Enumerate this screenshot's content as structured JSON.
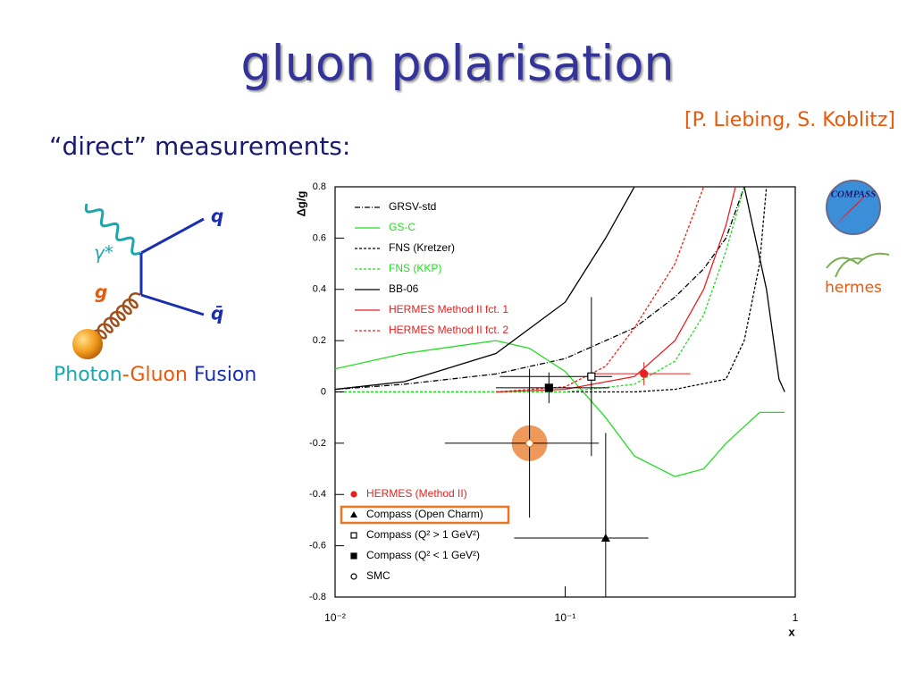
{
  "slide": {
    "title": "gluon polarisation",
    "citation": "[P. Liebing, S. Koblitz]",
    "subtitle": "“direct” measurements:",
    "diagram": {
      "photon": "γ*",
      "gluon": "g",
      "quark": "q",
      "antiquark": "q̄",
      "caption": [
        "Photon",
        "-Gluon",
        " Fusion"
      ]
    },
    "logos": [
      "COMPASS",
      "hermes"
    ]
  },
  "chart_data": {
    "type": "line",
    "xlabel": "x",
    "ylabel": "Δg/g",
    "xscale": "log",
    "xlim": [
      0.01,
      1
    ],
    "ylim": [
      -0.8,
      0.8
    ],
    "xticks": [
      {
        "value": 0.01,
        "label": "10⁻²"
      },
      {
        "value": 0.1,
        "label": "10⁻¹"
      },
      1
    ],
    "yticks": [
      -0.8,
      -0.6,
      -0.4,
      -0.2,
      0,
      0.2,
      0.4,
      0.6,
      0.8
    ],
    "curves": [
      {
        "name": "GRSV-std",
        "color": "#000000",
        "dash": "6 2 1 2",
        "x": [
          0.01,
          0.02,
          0.05,
          0.1,
          0.2,
          0.3,
          0.4,
          0.5,
          0.6
        ],
        "values": [
          0.01,
          0.03,
          0.07,
          0.13,
          0.25,
          0.37,
          0.48,
          0.6,
          0.8
        ]
      },
      {
        "name": "GS-C",
        "color": "#22dd22",
        "dash": "",
        "x": [
          0.01,
          0.02,
          0.05,
          0.07,
          0.1,
          0.15,
          0.2,
          0.3,
          0.4,
          0.5,
          0.7,
          0.9
        ],
        "values": [
          0.09,
          0.15,
          0.2,
          0.17,
          0.08,
          -0.1,
          -0.25,
          -0.33,
          -0.3,
          -0.2,
          -0.08,
          -0.08
        ]
      },
      {
        "name": "FNS (Kretzer)",
        "color": "#000000",
        "dash": "3 2",
        "x": [
          0.01,
          0.1,
          0.2,
          0.3,
          0.5,
          0.6,
          0.7,
          0.75
        ],
        "values": [
          0,
          0,
          0,
          0.01,
          0.05,
          0.2,
          0.5,
          0.8
        ]
      },
      {
        "name": "FNS (KKP)",
        "color": "#22dd22",
        "dash": "3 2",
        "x": [
          0.01,
          0.1,
          0.2,
          0.3,
          0.4,
          0.5,
          0.6
        ],
        "values": [
          0,
          0,
          0.03,
          0.12,
          0.3,
          0.55,
          0.8
        ]
      },
      {
        "name": "BB-06",
        "color": "#000000",
        "dash": "",
        "x": [
          0.01,
          0.02,
          0.05,
          0.1,
          0.15,
          0.2,
          null,
          0.6,
          0.75,
          0.85,
          0.9
        ],
        "values": [
          0.01,
          0.04,
          0.15,
          0.35,
          0.6,
          0.8,
          null,
          0.8,
          0.4,
          0.05,
          0
        ]
      },
      {
        "name": "HERMES Method II fct. 1",
        "color": "#e82020",
        "dash": "",
        "x": [
          0.05,
          0.1,
          0.2,
          0.3,
          0.4,
          0.5,
          0.55
        ],
        "values": [
          0,
          0.01,
          0.06,
          0.2,
          0.4,
          0.65,
          0.8
        ]
      },
      {
        "name": "HERMES Method II fct. 2",
        "color": "#e82020",
        "dash": "3 2",
        "x": [
          0.05,
          0.1,
          0.15,
          0.2,
          0.3,
          0.4
        ],
        "values": [
          0,
          0.02,
          0.1,
          0.25,
          0.5,
          0.8
        ]
      }
    ],
    "measurements": {
      "names": [
        "HERMES (Method II)",
        "Compass (Open Charm)",
        "Compass (Q² > 1 GeV²)",
        "Compass (Q² < 1 GeV²)",
        "SMC"
      ],
      "markers": [
        "filled-circle",
        "filled-triangle",
        "open-square",
        "filled-square",
        "open-circle"
      ],
      "colors": [
        "#e82020",
        "#000000",
        "#000000",
        "#000000",
        "#e87722"
      ],
      "x": [
        0.22,
        0.15,
        0.13,
        0.085,
        0.07
      ],
      "values": [
        0.071,
        -0.57,
        0.06,
        0.016,
        -0.2
      ],
      "yerr": [
        0.045,
        0.41,
        0.31,
        0.06,
        0.29
      ],
      "xlow": [
        0.13,
        0.06,
        0.052,
        0.05,
        0.03
      ],
      "xhigh": [
        0.35,
        0.23,
        0.16,
        0.155,
        0.14
      ],
      "boxed": 1,
      "highlighted": 4,
      "highlight_color": "#e87722"
    }
  }
}
